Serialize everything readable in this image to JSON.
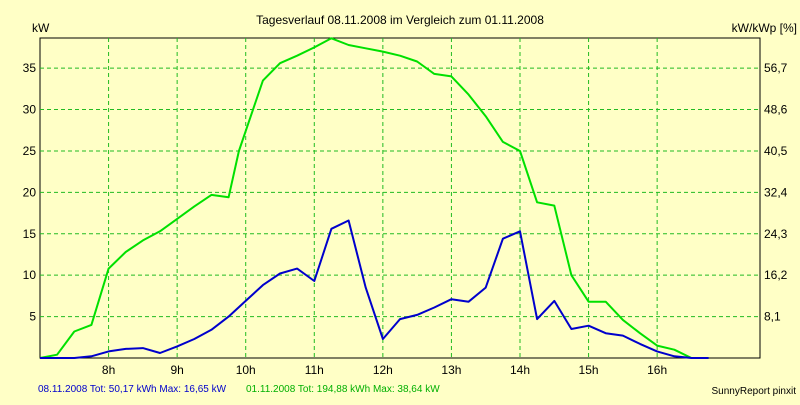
{
  "chart_data": {
    "type": "line",
    "title": "Tagesverlauf 08.11.2008 im Vergleich zum 01.11.2008",
    "ylabel_left": "kW",
    "ylabel_right": "kW/kWp [%]",
    "x_range": [
      7.0,
      17.5
    ],
    "ylim_left": [
      0,
      38.64
    ],
    "x_ticks": [
      8,
      9,
      10,
      11,
      12,
      13,
      14,
      15,
      16
    ],
    "x_tick_labels": [
      "8h",
      "9h",
      "10h",
      "11h",
      "12h",
      "13h",
      "14h",
      "15h",
      "16h"
    ],
    "y_ticks_left": [
      5,
      10,
      15,
      20,
      25,
      30,
      35
    ],
    "y_tick_labels_left": [
      "5",
      "10",
      "15",
      "20",
      "25",
      "30",
      "35"
    ],
    "y_ticks_right_kw": [
      5,
      10,
      15,
      20,
      25,
      30,
      35
    ],
    "y_tick_labels_right": [
      "8,1",
      "16,2",
      "24,3",
      "32,4",
      "40,5",
      "48,6",
      "56,7"
    ],
    "grid": true,
    "series": [
      {
        "color": "#00E000",
        "x": [
          7.0,
          7.25,
          7.5,
          7.75,
          8.0,
          8.25,
          8.5,
          8.75,
          9.0,
          9.25,
          9.5,
          9.75,
          9.9,
          10.25,
          10.5,
          10.75,
          11.0,
          11.25,
          11.5,
          11.75,
          12.0,
          12.25,
          12.5,
          12.75,
          13.0,
          13.25,
          13.5,
          13.75,
          14.0,
          14.25,
          14.5,
          14.75,
          15.0,
          15.25,
          15.5,
          15.75,
          16.0,
          16.25,
          16.5,
          16.75
        ],
        "values": [
          0.0,
          0.4,
          3.2,
          4.0,
          10.8,
          12.8,
          14.2,
          15.3,
          16.8,
          18.3,
          19.7,
          19.4,
          25.0,
          33.5,
          35.6,
          36.5,
          37.5,
          38.6,
          37.8,
          37.4,
          37.0,
          36.5,
          35.8,
          34.3,
          34.0,
          31.8,
          29.2,
          26.1,
          25.0,
          18.8,
          18.4,
          10.0,
          6.8,
          6.8,
          4.6,
          3.0,
          1.5,
          1.0,
          0.0,
          0.0
        ]
      },
      {
        "color": "#0000CC",
        "x": [
          7.0,
          7.25,
          7.5,
          7.75,
          8.0,
          8.25,
          8.5,
          8.75,
          9.0,
          9.25,
          9.5,
          9.75,
          10.0,
          10.25,
          10.5,
          10.75,
          11.0,
          11.25,
          11.5,
          11.75,
          12.0,
          12.25,
          12.5,
          12.75,
          13.0,
          13.25,
          13.5,
          13.75,
          14.0,
          14.25,
          14.5,
          14.75,
          15.0,
          15.25,
          15.5,
          15.75,
          16.0,
          16.25,
          16.5,
          16.75
        ],
        "values": [
          0.0,
          0.0,
          0.0,
          0.2,
          0.8,
          1.1,
          1.2,
          0.6,
          1.4,
          2.3,
          3.4,
          5.0,
          6.9,
          8.8,
          10.2,
          10.8,
          9.3,
          15.6,
          16.6,
          8.5,
          2.3,
          4.7,
          5.2,
          6.1,
          7.1,
          6.8,
          8.5,
          14.4,
          15.3,
          4.7,
          6.9,
          3.5,
          3.9,
          3.0,
          2.7,
          1.7,
          0.8,
          0.2,
          0.0,
          0.0
        ]
      }
    ]
  },
  "footer": {
    "left_blue": "08.11.2008 Tot: 50,17 kWh Max: 16,65 kW",
    "left_green": "01.11.2008 Tot: 194,88 kWh Max: 38,64 kW",
    "right": "SunnyReport pinxit"
  }
}
